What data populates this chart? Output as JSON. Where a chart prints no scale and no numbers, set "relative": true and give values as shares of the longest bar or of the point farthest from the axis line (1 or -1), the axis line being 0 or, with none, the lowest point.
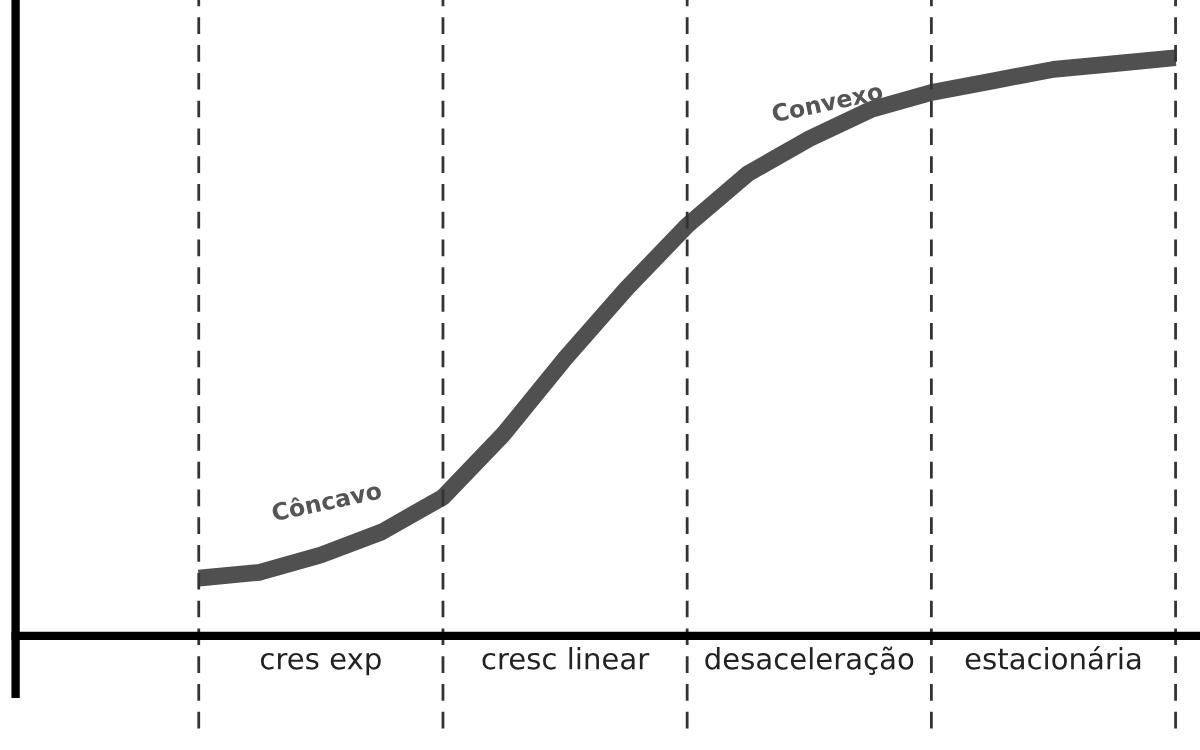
{
  "chart_data": {
    "type": "line",
    "relative": true,
    "marker": "none",
    "grid": "x",
    "line_style": "solid",
    "categories": [
      null,
      null,
      "cres exp",
      null,
      null,
      null,
      "cresc linear",
      null,
      null,
      null,
      "desaceleração",
      null,
      null,
      null,
      "estacionária",
      null,
      null
    ],
    "series": [
      {
        "color": "#505050",
        "values": [
          0.1,
          0.11,
          0.14,
          0.18,
          0.24,
          0.35,
          0.48,
          0.6,
          0.71,
          0.8,
          0.86,
          0.91,
          0.94,
          0.96,
          0.98,
          0.99,
          1.0
        ]
      }
    ],
    "annotations": [
      "Côncavo",
      "Convexo"
    ]
  }
}
